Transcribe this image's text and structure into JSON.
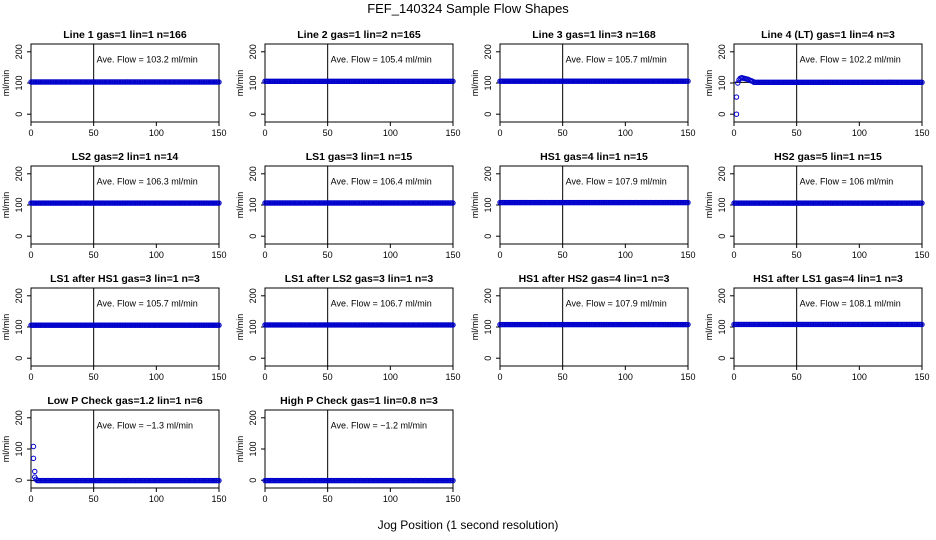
{
  "figure": {
    "title": "FEF_140324  Sample Flow Shapes",
    "xlabel": "Jog Position (1 second resolution)"
  },
  "chart_data": {
    "type": "scatter",
    "xlim": [
      0,
      150
    ],
    "ylim": [
      -25,
      225
    ],
    "x_ticks": [
      0,
      50,
      100,
      150
    ],
    "y_ticks": [
      0,
      100,
      200
    ],
    "ylabel": "ml/min",
    "vline_x": 50,
    "grid": false,
    "marker_color": "#0000cc",
    "panels": [
      {
        "title": "Line 1 gas=1 lin=1 n=166",
        "ave_label": "Ave. Flow =  103.2  ml/min",
        "ave_flow": 103.2,
        "series": {
          "level": 103.2,
          "x_start": 0
        }
      },
      {
        "title": "Line 2 gas=1 lin=2 n=165",
        "ave_label": "Ave. Flow =  105.4  ml/min",
        "ave_flow": 105.4,
        "series": {
          "level": 105.4,
          "x_start": 0
        }
      },
      {
        "title": "Line 3 gas=1 lin=3 n=168",
        "ave_label": "Ave. Flow =  105.7  ml/min",
        "ave_flow": 105.7,
        "series": {
          "level": 105.7,
          "x_start": 0
        }
      },
      {
        "title": "Line 4 (LT) gas=1 lin=4 n=3",
        "ave_label": "Ave. Flow =  102.2  ml/min",
        "ave_flow": 102.2,
        "series": {
          "level": 102.2,
          "x_start": 16,
          "prefix": [
            [
              2,
              0
            ],
            [
              2,
              55
            ],
            [
              3,
              100
            ],
            [
              4,
              110
            ],
            [
              5,
              115
            ],
            [
              6,
              117
            ],
            [
              7,
              116
            ],
            [
              8,
              115
            ],
            [
              9,
              114
            ],
            [
              10,
              113
            ],
            [
              11,
              112
            ],
            [
              12,
              110
            ],
            [
              13,
              108
            ],
            [
              14,
              107
            ],
            [
              15,
              105
            ]
          ]
        }
      },
      {
        "title": "LS2 gas=2 lin=1 n=14",
        "ave_label": "Ave. Flow =  106.3  ml/min",
        "ave_flow": 106.3,
        "series": {
          "level": 106.3,
          "x_start": 0
        }
      },
      {
        "title": "LS1 gas=3 lin=1 n=15",
        "ave_label": "Ave. Flow =  106.4  ml/min",
        "ave_flow": 106.4,
        "series": {
          "level": 106.4,
          "x_start": 0
        }
      },
      {
        "title": "HS1 gas=4 lin=1 n=15",
        "ave_label": "Ave. Flow =  107.9  ml/min",
        "ave_flow": 107.9,
        "series": {
          "level": 107.9,
          "x_start": 0
        }
      },
      {
        "title": "HS2 gas=5 lin=1 n=15",
        "ave_label": "Ave. Flow =  106  ml/min",
        "ave_flow": 106,
        "series": {
          "level": 106,
          "x_start": 0
        }
      },
      {
        "title": "LS1 after HS1 gas=3 lin=1 n=3",
        "ave_label": "Ave. Flow =  105.7  ml/min",
        "ave_flow": 105.7,
        "series": {
          "level": 105.7,
          "x_start": 0
        }
      },
      {
        "title": "LS1 after LS2 gas=3 lin=1 n=3",
        "ave_label": "Ave. Flow =  106.7  ml/min",
        "ave_flow": 106.7,
        "series": {
          "level": 106.7,
          "x_start": 0
        }
      },
      {
        "title": "HS1 after HS2 gas=4 lin=1 n=3",
        "ave_label": "Ave. Flow =  107.9  ml/min",
        "ave_flow": 107.9,
        "series": {
          "level": 107.9,
          "x_start": 0
        }
      },
      {
        "title": "HS1 after LS1 gas=4 lin=1 n=3",
        "ave_label": "Ave. Flow =  108.1  ml/min",
        "ave_flow": 108.1,
        "series": {
          "level": 108.1,
          "x_start": 0
        }
      },
      {
        "title": "Low P Check gas=1.2 lin=1 n=6",
        "ave_label": "Ave. Flow =  −1.3  ml/min",
        "ave_flow": -1.3,
        "series": {
          "level": -1.3,
          "x_start": 5,
          "prefix": [
            [
              2,
              108
            ],
            [
              2,
              70
            ],
            [
              3,
              28
            ],
            [
              3,
              10
            ],
            [
              4,
              3
            ]
          ]
        }
      },
      {
        "title": "High P Check gas=1 lin=0.8 n=3",
        "ave_label": "Ave. Flow =  −1.2  ml/min",
        "ave_flow": -1.2,
        "series": {
          "level": -1.2,
          "x_start": 0
        }
      }
    ]
  }
}
